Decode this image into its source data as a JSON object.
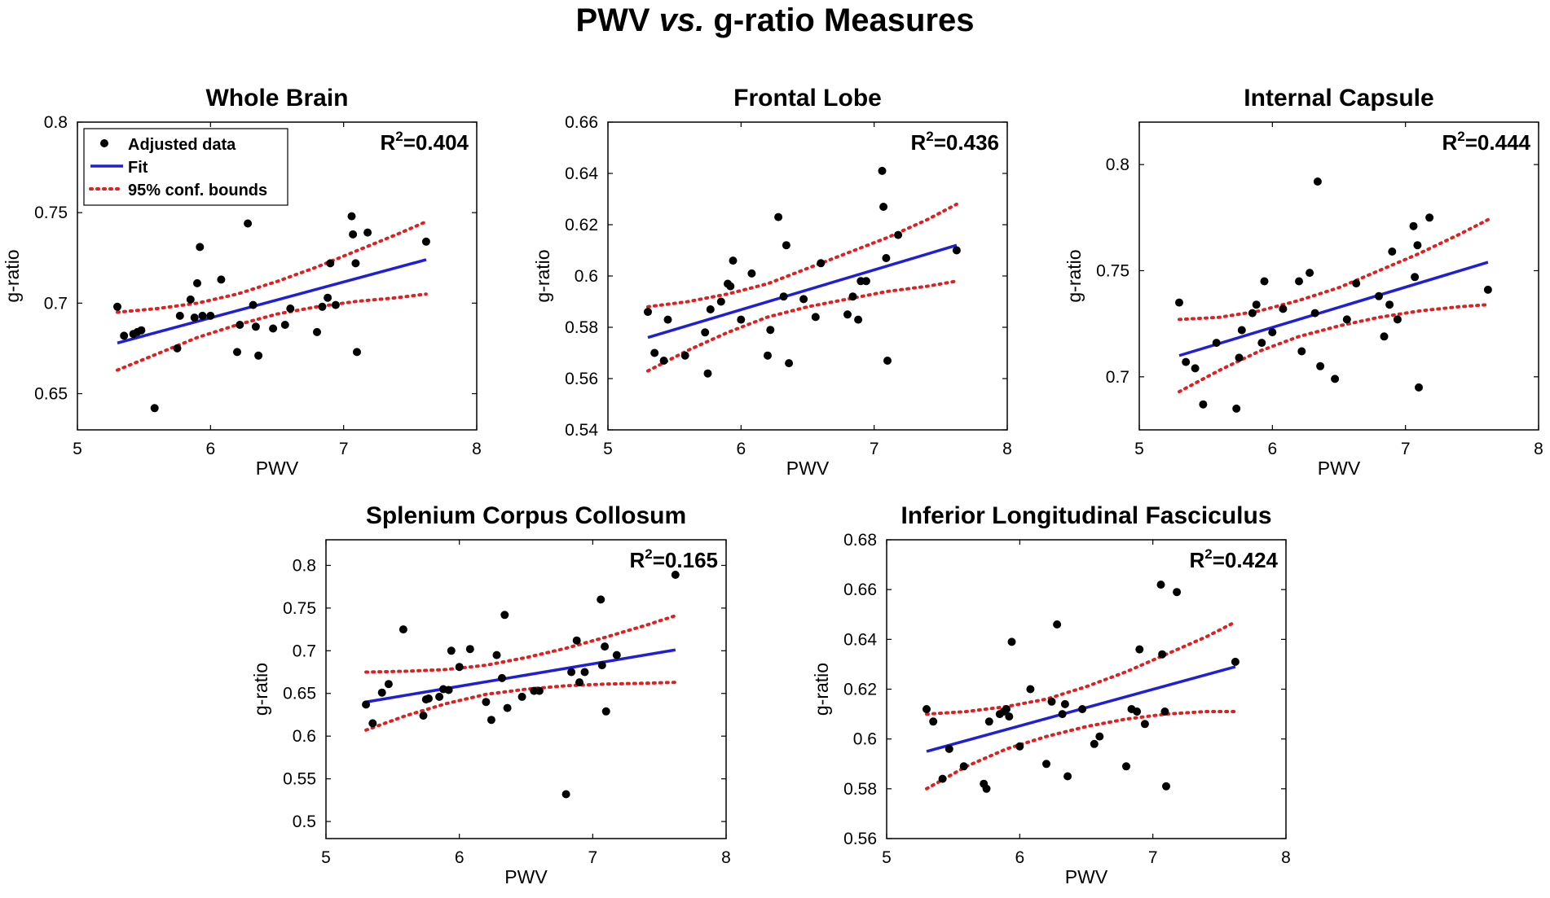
{
  "figure": {
    "title_part1": "PWV ",
    "title_part2": "vs.",
    "title_part3": " g-ratio Measures"
  },
  "legend": {
    "items": [
      {
        "label": "Adjusted data",
        "kind": "marker"
      },
      {
        "label": "Fit",
        "kind": "line",
        "color": "#1f1fd9"
      },
      {
        "label": "95% conf. bounds",
        "kind": "dotted",
        "color": "#e02020"
      }
    ]
  },
  "colors": {
    "points": "#000000",
    "fit": "#1f1fd9",
    "bounds": "#e02020",
    "axes": "#000000"
  },
  "chart_data": [
    {
      "type": "scatter",
      "title": "Whole Brain",
      "xlabel": "PWV",
      "ylabel": "g-ratio",
      "xlim": [
        5,
        8
      ],
      "ylim": [
        0.63,
        0.8
      ],
      "xticks": [
        "5",
        "6",
        "7",
        "8"
      ],
      "yticks": [
        "0.65",
        "0.7",
        "0.75",
        "0.8"
      ],
      "ytick_values": [
        0.65,
        0.7,
        0.75,
        0.8
      ],
      "r2_label": "R",
      "r2_sup": "2",
      "r2_value": "=0.404",
      "has_legend": true,
      "fit": {
        "x": [
          5.3,
          7.62
        ],
        "y": [
          0.678,
          0.724
        ]
      },
      "lower_bound": {
        "x": [
          5.3,
          5.6,
          5.9,
          6.2,
          6.5,
          6.8,
          7.1,
          7.4,
          7.62
        ],
        "y": [
          0.663,
          0.672,
          0.681,
          0.688,
          0.694,
          0.698,
          0.701,
          0.703,
          0.705
        ]
      },
      "upper_bound": {
        "x": [
          5.3,
          5.6,
          5.9,
          6.2,
          6.5,
          6.8,
          7.1,
          7.4,
          7.62
        ],
        "y": [
          0.695,
          0.697,
          0.7,
          0.705,
          0.712,
          0.72,
          0.729,
          0.738,
          0.745
        ]
      },
      "points": {
        "x": [
          5.3,
          5.35,
          5.42,
          5.45,
          5.48,
          5.58,
          5.75,
          5.77,
          5.85,
          5.88,
          5.9,
          5.92,
          5.94,
          6.0,
          6.08,
          6.2,
          6.22,
          6.28,
          6.32,
          6.34,
          6.36,
          6.47,
          6.56,
          6.6,
          6.8,
          6.84,
          6.88,
          6.9,
          6.94,
          7.06,
          7.07,
          7.09,
          7.1,
          7.18,
          7.62
        ],
        "y": [
          0.698,
          0.682,
          0.683,
          0.684,
          0.685,
          0.642,
          0.675,
          0.693,
          0.702,
          0.692,
          0.711,
          0.731,
          0.693,
          0.693,
          0.713,
          0.673,
          0.688,
          0.744,
          0.699,
          0.687,
          0.671,
          0.686,
          0.688,
          0.697,
          0.684,
          0.698,
          0.703,
          0.722,
          0.699,
          0.748,
          0.738,
          0.722,
          0.673,
          0.739,
          0.734
        ]
      }
    },
    {
      "type": "scatter",
      "title": "Frontal Lobe",
      "xlabel": "PWV",
      "ylabel": "g-ratio",
      "xlim": [
        5,
        8
      ],
      "ylim": [
        0.54,
        0.66
      ],
      "xticks": [
        "5",
        "6",
        "7",
        "8"
      ],
      "yticks": [
        "0.54",
        "0.56",
        "0.58",
        "0.6",
        "0.62",
        "0.64",
        "0.66"
      ],
      "ytick_values": [
        0.54,
        0.56,
        0.58,
        0.6,
        0.62,
        0.64,
        0.66
      ],
      "r2_label": "R",
      "r2_sup": "2",
      "r2_value": "=0.436",
      "has_legend": false,
      "fit": {
        "x": [
          5.3,
          7.62
        ],
        "y": [
          0.576,
          0.612
        ]
      },
      "lower_bound": {
        "x": [
          5.3,
          5.6,
          5.9,
          6.2,
          6.5,
          6.8,
          7.1,
          7.4,
          7.62
        ],
        "y": [
          0.563,
          0.571,
          0.578,
          0.584,
          0.588,
          0.591,
          0.594,
          0.596,
          0.598
        ]
      },
      "upper_bound": {
        "x": [
          5.3,
          5.6,
          5.9,
          6.2,
          6.5,
          6.8,
          7.1,
          7.4,
          7.62
        ],
        "y": [
          0.588,
          0.59,
          0.593,
          0.597,
          0.603,
          0.609,
          0.615,
          0.622,
          0.628
        ]
      },
      "points": {
        "x": [
          5.3,
          5.35,
          5.42,
          5.45,
          5.58,
          5.73,
          5.75,
          5.77,
          5.85,
          5.9,
          5.92,
          5.94,
          6.0,
          6.08,
          6.2,
          6.22,
          6.28,
          6.32,
          6.34,
          6.36,
          6.47,
          6.56,
          6.6,
          6.8,
          6.84,
          6.88,
          6.9,
          6.94,
          7.06,
          7.07,
          7.09,
          7.1,
          7.18,
          7.62
        ],
        "y": [
          0.586,
          0.57,
          0.567,
          0.583,
          0.569,
          0.578,
          0.562,
          0.587,
          0.59,
          0.597,
          0.596,
          0.606,
          0.583,
          0.601,
          0.569,
          0.579,
          0.623,
          0.592,
          0.612,
          0.566,
          0.591,
          0.584,
          0.605,
          0.585,
          0.592,
          0.583,
          0.598,
          0.598,
          0.641,
          0.627,
          0.607,
          0.567,
          0.616,
          0.61
        ]
      }
    },
    {
      "type": "scatter",
      "title": "Internal Capsule",
      "xlabel": "PWV",
      "ylabel": "g-ratio",
      "xlim": [
        5,
        8
      ],
      "ylim": [
        0.675,
        0.82
      ],
      "xticks": [
        "5",
        "6",
        "7",
        "8"
      ],
      "yticks": [
        "0.7",
        "0.75",
        "0.8"
      ],
      "ytick_values": [
        0.7,
        0.75,
        0.8
      ],
      "r2_label": "R",
      "r2_sup": "2",
      "r2_value": "=0.444",
      "has_legend": false,
      "fit": {
        "x": [
          5.3,
          7.62
        ],
        "y": [
          0.71,
          0.754
        ]
      },
      "lower_bound": {
        "x": [
          5.3,
          5.6,
          5.9,
          6.2,
          6.5,
          6.8,
          7.1,
          7.4,
          7.62
        ],
        "y": [
          0.693,
          0.703,
          0.712,
          0.719,
          0.724,
          0.728,
          0.731,
          0.733,
          0.734
        ]
      },
      "upper_bound": {
        "x": [
          5.3,
          5.6,
          5.9,
          6.2,
          6.5,
          6.8,
          7.1,
          7.4,
          7.62
        ],
        "y": [
          0.727,
          0.728,
          0.731,
          0.736,
          0.742,
          0.75,
          0.758,
          0.767,
          0.774
        ]
      },
      "points": {
        "x": [
          5.3,
          5.35,
          5.42,
          5.48,
          5.58,
          5.73,
          5.75,
          5.77,
          5.85,
          5.88,
          5.92,
          5.94,
          6.0,
          6.08,
          6.2,
          6.22,
          6.28,
          6.32,
          6.34,
          6.36,
          6.47,
          6.56,
          6.63,
          6.8,
          6.84,
          6.88,
          6.9,
          6.94,
          7.06,
          7.07,
          7.09,
          7.1,
          7.18,
          7.62
        ],
        "y": [
          0.735,
          0.707,
          0.704,
          0.687,
          0.716,
          0.685,
          0.709,
          0.722,
          0.73,
          0.734,
          0.716,
          0.745,
          0.721,
          0.732,
          0.745,
          0.712,
          0.749,
          0.73,
          0.792,
          0.705,
          0.699,
          0.727,
          0.744,
          0.738,
          0.719,
          0.734,
          0.759,
          0.727,
          0.771,
          0.747,
          0.762,
          0.695,
          0.775,
          0.741
        ]
      }
    },
    {
      "type": "scatter",
      "title": "Splenium Corpus Collosum",
      "xlabel": "PWV",
      "ylabel": "g-ratio",
      "xlim": [
        5,
        8
      ],
      "ylim": [
        0.48,
        0.83
      ],
      "xticks": [
        "5",
        "6",
        "7",
        "8"
      ],
      "yticks": [
        "0.5",
        "0.55",
        "0.6",
        "0.65",
        "0.7",
        "0.75",
        "0.8"
      ],
      "ytick_values": [
        0.5,
        0.55,
        0.6,
        0.65,
        0.7,
        0.75,
        0.8
      ],
      "r2_label": "R",
      "r2_sup": "2",
      "r2_value": "=0.165",
      "has_legend": false,
      "fit": {
        "x": [
          5.3,
          7.62
        ],
        "y": [
          0.64,
          0.701
        ]
      },
      "lower_bound": {
        "x": [
          5.3,
          5.6,
          5.9,
          6.2,
          6.5,
          6.8,
          7.1,
          7.4,
          7.62
        ],
        "y": [
          0.607,
          0.624,
          0.638,
          0.649,
          0.655,
          0.659,
          0.661,
          0.662,
          0.663
        ]
      },
      "upper_bound": {
        "x": [
          5.3,
          5.6,
          5.9,
          6.2,
          6.5,
          6.8,
          7.1,
          7.4,
          7.62
        ],
        "y": [
          0.675,
          0.676,
          0.678,
          0.683,
          0.692,
          0.703,
          0.716,
          0.73,
          0.741
        ]
      },
      "points": {
        "x": [
          5.3,
          5.35,
          5.42,
          5.47,
          5.58,
          5.73,
          5.75,
          5.77,
          5.85,
          5.88,
          5.92,
          5.94,
          6.0,
          6.08,
          6.2,
          6.24,
          6.28,
          6.32,
          6.34,
          6.36,
          6.47,
          6.56,
          6.6,
          6.8,
          6.84,
          6.88,
          6.9,
          6.94,
          7.06,
          7.07,
          7.09,
          7.1,
          7.18,
          7.62
        ],
        "y": [
          0.637,
          0.615,
          0.651,
          0.661,
          0.725,
          0.624,
          0.643,
          0.644,
          0.646,
          0.655,
          0.654,
          0.7,
          0.681,
          0.702,
          0.64,
          0.619,
          0.695,
          0.668,
          0.742,
          0.633,
          0.646,
          0.653,
          0.653,
          0.532,
          0.675,
          0.712,
          0.663,
          0.675,
          0.76,
          0.683,
          0.705,
          0.629,
          0.695,
          0.789
        ]
      }
    },
    {
      "type": "scatter",
      "title": "Inferior Longitudinal Fasciculus",
      "xlabel": "PWV",
      "ylabel": "g-ratio",
      "xlim": [
        5,
        8
      ],
      "ylim": [
        0.56,
        0.68
      ],
      "xticks": [
        "5",
        "6",
        "7",
        "8"
      ],
      "yticks": [
        "0.56",
        "0.58",
        "0.6",
        "0.62",
        "0.64",
        "0.66",
        "0.68"
      ],
      "ytick_values": [
        0.56,
        0.58,
        0.6,
        0.62,
        0.64,
        0.66,
        0.68
      ],
      "r2_label": "R",
      "r2_sup": "2",
      "r2_value": "=0.424",
      "has_legend": false,
      "fit": {
        "x": [
          5.3,
          7.62
        ],
        "y": [
          0.595,
          0.629
        ]
      },
      "lower_bound": {
        "x": [
          5.3,
          5.6,
          5.9,
          6.2,
          6.5,
          6.8,
          7.1,
          7.4,
          7.62
        ],
        "y": [
          0.58,
          0.589,
          0.596,
          0.601,
          0.605,
          0.608,
          0.61,
          0.611,
          0.611
        ]
      },
      "upper_bound": {
        "x": [
          5.3,
          5.6,
          5.9,
          6.2,
          6.5,
          6.8,
          7.1,
          7.4,
          7.62
        ],
        "y": [
          0.61,
          0.611,
          0.613,
          0.616,
          0.621,
          0.627,
          0.634,
          0.641,
          0.647
        ]
      },
      "points": {
        "x": [
          5.3,
          5.35,
          5.42,
          5.47,
          5.58,
          5.73,
          5.75,
          5.77,
          5.85,
          5.88,
          5.9,
          5.92,
          5.94,
          6.0,
          6.08,
          6.2,
          6.24,
          6.28,
          6.32,
          6.34,
          6.36,
          6.47,
          6.56,
          6.6,
          6.8,
          6.84,
          6.88,
          6.9,
          6.94,
          7.06,
          7.07,
          7.09,
          7.1,
          7.18,
          7.62
        ],
        "y": [
          0.612,
          0.607,
          0.584,
          0.596,
          0.589,
          0.582,
          0.58,
          0.607,
          0.61,
          0.611,
          0.612,
          0.609,
          0.639,
          0.597,
          0.62,
          0.59,
          0.615,
          0.646,
          0.61,
          0.614,
          0.585,
          0.612,
          0.598,
          0.601,
          0.589,
          0.612,
          0.611,
          0.636,
          0.606,
          0.662,
          0.634,
          0.611,
          0.581,
          0.659,
          0.631
        ]
      }
    }
  ]
}
